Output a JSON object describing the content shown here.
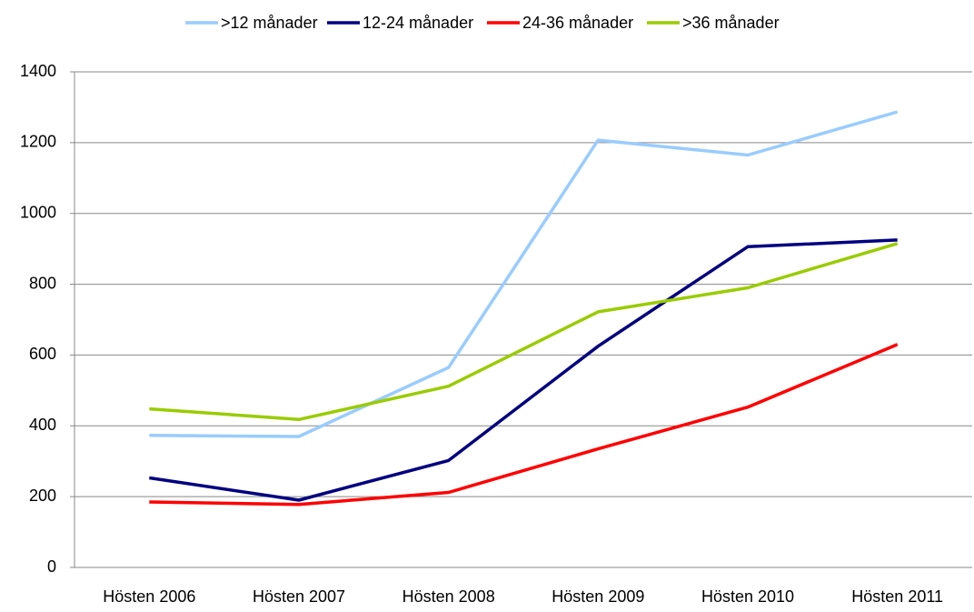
{
  "chart_data": {
    "type": "line",
    "categories": [
      "Hösten 2006",
      "Hösten 2007",
      "Hösten 2008",
      "Hösten 2009",
      "Hösten 2010",
      "Hösten 2011"
    ],
    "series": [
      {
        "name": ">12 månader",
        "color": "#99ccff",
        "values": [
          373,
          370,
          565,
          1207,
          1165,
          1287
        ]
      },
      {
        "name": "12-24 månader",
        "color": "#000080",
        "values": [
          253,
          190,
          302,
          625,
          906,
          925
        ]
      },
      {
        "name": "24-36 månader",
        "color": "#ff0000",
        "values": [
          185,
          178,
          212,
          335,
          453,
          630
        ]
      },
      {
        "name": ">36 månader",
        "color": "#99cc00",
        "values": [
          448,
          418,
          512,
          722,
          790,
          915
        ]
      }
    ],
    "ylim": [
      0,
      1400
    ],
    "yticks": [
      0,
      200,
      400,
      600,
      800,
      1000,
      1200,
      1400
    ],
    "grid": true,
    "legend": "top"
  }
}
